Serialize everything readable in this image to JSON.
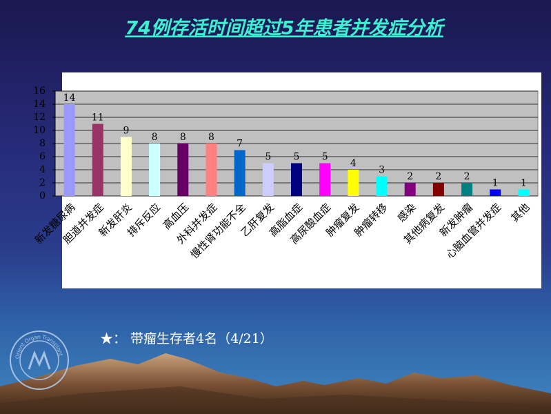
{
  "chart_data": {
    "type": "bar",
    "title": "74例存活时间超过5年患者并发症分析",
    "categories": [
      "新发糖尿病",
      "胆道并发症",
      "新发肝炎",
      "排斥反应",
      "高血压",
      "外科并发症",
      "慢性肾功能不全",
      "乙肝复发",
      "高脂血症",
      "高尿酸血症",
      "肿瘤复发",
      "肿瘤转移",
      "感染",
      "其他病复发",
      "新发肿瘤",
      "心脑血管并发症",
      "其他"
    ],
    "values": [
      14,
      11,
      9,
      8,
      8,
      8,
      7,
      5,
      5,
      5,
      4,
      3,
      2,
      2,
      2,
      1,
      1
    ],
    "colors": [
      "#9999ff",
      "#993366",
      "#ffffcc",
      "#ccffff",
      "#660066",
      "#ff8080",
      "#0066cc",
      "#ccccff",
      "#000080",
      "#ff00ff",
      "#ffff00",
      "#00ffff",
      "#800080",
      "#800000",
      "#008080",
      "#0000ff",
      "#00ffff"
    ],
    "ylim": [
      0,
      16
    ],
    "yticks": [
      0,
      2,
      4,
      6,
      8,
      10,
      12,
      14,
      16
    ],
    "grid": true
  },
  "footnote": "★： 带瘤生存者4名（4/21）",
  "logo_text": "Orient Organ Transplant Center"
}
